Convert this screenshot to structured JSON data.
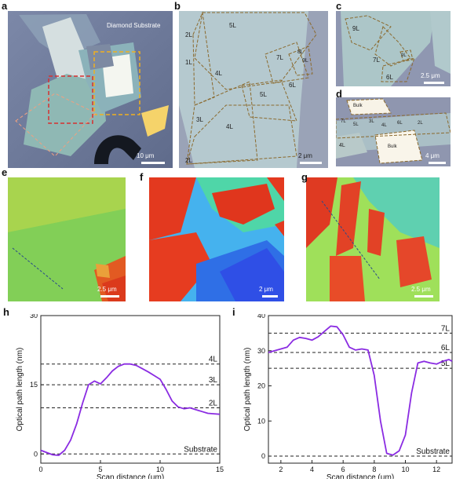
{
  "panel_labels": [
    "a",
    "b",
    "c",
    "d",
    "e",
    "f",
    "g",
    "h",
    "i"
  ],
  "panel_a": {
    "substrate_label": "Diamond Substrate",
    "scale": "10 μm"
  },
  "panel_b": {
    "layers": [
      "5L",
      "2L",
      "1L",
      "4L",
      "7L",
      "8L",
      "9L",
      "6L",
      "5L",
      "3L",
      "4L",
      "2L"
    ],
    "scale": "2 μm"
  },
  "panel_c": {
    "layers": [
      "9L",
      "9L",
      "7L",
      "6L"
    ],
    "scale": "2.5 μm"
  },
  "panel_d": {
    "layers": [
      "Bulk",
      "7L",
      "5L",
      "3L",
      "4L",
      "6L",
      "2L",
      "4L",
      "Bulk"
    ],
    "scale": "4 μm"
  },
  "panel_e": {
    "scale": "2.5 μm"
  },
  "panel_f": {
    "scale": "2 μm"
  },
  "panel_g": {
    "scale": "2.5 μm"
  },
  "chart_data": [
    {
      "type": "line",
      "xlabel": "Scan distance (μm)",
      "ylabel": "Optical path length (nm)",
      "xlim": [
        0,
        15
      ],
      "ylim": [
        -2,
        30
      ],
      "xticks": [
        "0",
        "5",
        "10",
        "15"
      ],
      "yticks": [
        "0",
        "15",
        "30"
      ],
      "reference_lines": [
        {
          "label": "Substrate",
          "y": 0
        },
        {
          "label": "2L",
          "y": 10
        },
        {
          "label": "3L",
          "y": 15
        },
        {
          "label": "4L",
          "y": 19.5
        }
      ],
      "series": [
        {
          "color": "#8a2be2",
          "x": [
            0,
            0.5,
            1,
            1.5,
            2,
            2.5,
            3,
            3.5,
            4,
            4.5,
            5,
            5.5,
            6,
            6.5,
            7,
            7.5,
            8,
            8.5,
            9,
            9.5,
            10,
            10.5,
            11,
            11.5,
            12,
            12.5,
            13,
            13.5,
            14,
            14.5,
            15
          ],
          "y": [
            0.8,
            0.3,
            -0.2,
            -0.3,
            0.8,
            3,
            6.5,
            11,
            15,
            15.8,
            15.2,
            16.5,
            18,
            19,
            19.5,
            19.5,
            19.2,
            18.5,
            17.8,
            17,
            16.2,
            14,
            11.5,
            10.2,
            9.8,
            10,
            9.6,
            9.2,
            8.8,
            8.7,
            8.6
          ]
        }
      ]
    },
    {
      "type": "line",
      "xlabel": "Scan distance (μm)",
      "ylabel": "Optical path length (nm)",
      "xlim": [
        1.2,
        13
      ],
      "ylim": [
        -2,
        40
      ],
      "xticks": [
        "2",
        "4",
        "6",
        "8",
        "10",
        "12"
      ],
      "yticks": [
        "0",
        "10",
        "20",
        "30",
        "40"
      ],
      "reference_lines": [
        {
          "label": "Substrate",
          "y": 0
        },
        {
          "label": "5L",
          "y": 25
        },
        {
          "label": "6L",
          "y": 29.5
        },
        {
          "label": "7L",
          "y": 35
        }
      ],
      "series": [
        {
          "color": "#8a2be2",
          "x": [
            1.2,
            1.6,
            2,
            2.4,
            2.8,
            3.2,
            3.6,
            4,
            4.4,
            4.8,
            5.2,
            5.6,
            6,
            6.4,
            6.8,
            7.2,
            7.6,
            8,
            8.4,
            8.8,
            9.2,
            9.6,
            10,
            10.4,
            10.8,
            11.2,
            11.6,
            12,
            12.4,
            12.8,
            13
          ],
          "y": [
            29.5,
            30,
            30.5,
            31,
            33,
            33.8,
            33.5,
            33,
            34,
            35.5,
            37,
            36.8,
            34.5,
            31,
            30.2,
            30.5,
            30.2,
            23,
            10,
            0.8,
            0.3,
            1.5,
            6,
            18,
            26.5,
            27,
            26.5,
            26.2,
            27,
            27.5,
            27
          ]
        }
      ]
    }
  ]
}
